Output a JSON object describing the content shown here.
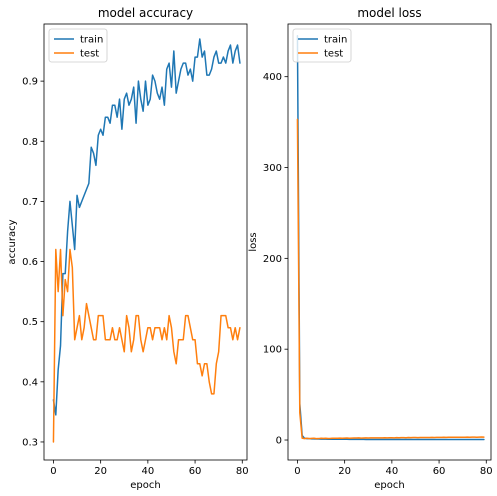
{
  "chart_data": [
    {
      "type": "line",
      "title": "model accuracy",
      "xlabel": "epoch",
      "ylabel": "accuracy",
      "xlim": [
        -4,
        82
      ],
      "ylim": [
        0.27,
        0.995
      ],
      "xticks": [
        0,
        20,
        40,
        60,
        80
      ],
      "yticks": [
        0.3,
        0.4,
        0.5,
        0.6,
        0.7,
        0.8,
        0.9
      ],
      "ytick_decimals": 1,
      "legend": "upper left",
      "grid": false,
      "series": [
        {
          "name": "train",
          "color": "#1f77b4",
          "x": [
            0,
            1,
            2,
            3,
            4,
            5,
            6,
            7,
            8,
            9,
            10,
            11,
            12,
            13,
            14,
            15,
            16,
            17,
            18,
            19,
            20,
            21,
            22,
            23,
            24,
            25,
            26,
            27,
            28,
            29,
            30,
            31,
            32,
            33,
            34,
            35,
            36,
            37,
            38,
            39,
            40,
            41,
            42,
            43,
            44,
            45,
            46,
            47,
            48,
            49,
            50,
            51,
            52,
            53,
            54,
            55,
            56,
            57,
            58,
            59,
            60,
            61,
            62,
            63,
            64,
            65,
            66,
            67,
            68,
            69,
            70,
            71,
            72,
            73,
            74,
            75,
            76,
            77,
            78,
            79
          ],
          "y": [
            0.37,
            0.345,
            0.42,
            0.46,
            0.58,
            0.58,
            0.65,
            0.7,
            0.66,
            0.62,
            0.71,
            0.69,
            0.7,
            0.71,
            0.72,
            0.73,
            0.79,
            0.78,
            0.76,
            0.81,
            0.82,
            0.81,
            0.84,
            0.84,
            0.83,
            0.86,
            0.86,
            0.84,
            0.87,
            0.82,
            0.87,
            0.88,
            0.86,
            0.87,
            0.89,
            0.83,
            0.9,
            0.87,
            0.85,
            0.9,
            0.86,
            0.87,
            0.91,
            0.9,
            0.88,
            0.87,
            0.89,
            0.86,
            0.92,
            0.93,
            0.89,
            0.95,
            0.88,
            0.9,
            0.92,
            0.93,
            0.93,
            0.91,
            0.92,
            0.9,
            0.94,
            0.94,
            0.97,
            0.94,
            0.95,
            0.91,
            0.91,
            0.92,
            0.94,
            0.95,
            0.93,
            0.93,
            0.94,
            0.93,
            0.95,
            0.96,
            0.93,
            0.95,
            0.96,
            0.93
          ]
        },
        {
          "name": "test",
          "color": "#ff7f0e",
          "x": [
            0,
            1,
            2,
            3,
            4,
            5,
            6,
            7,
            8,
            9,
            10,
            11,
            12,
            13,
            14,
            15,
            16,
            17,
            18,
            19,
            20,
            21,
            22,
            23,
            24,
            25,
            26,
            27,
            28,
            29,
            30,
            31,
            32,
            33,
            34,
            35,
            36,
            37,
            38,
            39,
            40,
            41,
            42,
            43,
            44,
            45,
            46,
            47,
            48,
            49,
            50,
            51,
            52,
            53,
            54,
            55,
            56,
            57,
            58,
            59,
            60,
            61,
            62,
            63,
            64,
            65,
            66,
            67,
            68,
            69,
            70,
            71,
            72,
            73,
            74,
            75,
            76,
            77,
            78,
            79
          ],
          "y": [
            0.3,
            0.62,
            0.55,
            0.62,
            0.51,
            0.57,
            0.55,
            0.62,
            0.59,
            0.47,
            0.49,
            0.51,
            0.47,
            0.49,
            0.53,
            0.51,
            0.49,
            0.47,
            0.47,
            0.51,
            0.51,
            0.51,
            0.47,
            0.47,
            0.47,
            0.49,
            0.47,
            0.47,
            0.49,
            0.47,
            0.45,
            0.51,
            0.49,
            0.45,
            0.47,
            0.51,
            0.51,
            0.47,
            0.45,
            0.47,
            0.49,
            0.49,
            0.47,
            0.49,
            0.49,
            0.49,
            0.47,
            0.49,
            0.47,
            0.51,
            0.49,
            0.45,
            0.43,
            0.47,
            0.47,
            0.47,
            0.51,
            0.51,
            0.49,
            0.47,
            0.47,
            0.43,
            0.43,
            0.41,
            0.43,
            0.43,
            0.4,
            0.38,
            0.38,
            0.43,
            0.45,
            0.51,
            0.51,
            0.51,
            0.49,
            0.49,
            0.47,
            0.49,
            0.47,
            0.49
          ]
        }
      ]
    },
    {
      "type": "line",
      "title": "model loss",
      "xlabel": "epoch",
      "ylabel": "loss",
      "xlim": [
        -4,
        82
      ],
      "ylim": [
        -22,
        458
      ],
      "xticks": [
        0,
        20,
        40,
        60,
        80
      ],
      "yticks": [
        0,
        100,
        200,
        300,
        400
      ],
      "ytick_decimals": 0,
      "legend": "upper left",
      "grid": false,
      "series": [
        {
          "name": "train",
          "color": "#1f77b4",
          "x": [
            0,
            1,
            2,
            3,
            4,
            5,
            6,
            7,
            8,
            9,
            10,
            11,
            12,
            13,
            14,
            15,
            16,
            17,
            18,
            19,
            20,
            21,
            22,
            23,
            24,
            25,
            26,
            27,
            28,
            29,
            30,
            31,
            32,
            33,
            34,
            35,
            36,
            37,
            38,
            39,
            40,
            41,
            42,
            43,
            44,
            45,
            46,
            47,
            48,
            49,
            50,
            51,
            52,
            53,
            54,
            55,
            56,
            57,
            58,
            59,
            60,
            61,
            62,
            63,
            64,
            65,
            66,
            67,
            68,
            69,
            70,
            71,
            72,
            73,
            74,
            75,
            76,
            77,
            78,
            79
          ],
          "y": [
            445,
            40,
            5,
            2,
            1.5,
            1.5,
            1.2,
            1.2,
            1.1,
            1.1,
            1,
            1,
            1,
            0.9,
            0.9,
            0.9,
            0.9,
            0.8,
            0.8,
            0.8,
            0.8,
            0.8,
            0.7,
            0.7,
            0.7,
            0.7,
            0.7,
            0.7,
            0.7,
            0.6,
            0.6,
            0.6,
            0.6,
            0.6,
            0.6,
            0.6,
            0.6,
            0.5,
            0.5,
            0.5,
            0.5,
            0.5,
            0.5,
            0.5,
            0.5,
            0.5,
            0.5,
            0.5,
            0.5,
            0.5,
            0.5,
            0.5,
            0.5,
            0.5,
            0.5,
            0.5,
            0.5,
            0.5,
            0.5,
            0.5,
            0.5,
            0.5,
            0.5,
            0.5,
            0.5,
            0.5,
            0.5,
            0.5,
            0.5,
            0.5,
            0.5,
            0.5,
            0.5,
            0.5,
            0.5,
            0.5,
            0.5,
            0.5,
            0.5,
            0.5
          ]
        },
        {
          "name": "test",
          "color": "#ff7f0e",
          "x": [
            0,
            1,
            2,
            3,
            4,
            5,
            6,
            7,
            8,
            9,
            10,
            11,
            12,
            13,
            14,
            15,
            16,
            17,
            18,
            19,
            20,
            21,
            22,
            23,
            24,
            25,
            26,
            27,
            28,
            29,
            30,
            31,
            32,
            33,
            34,
            35,
            36,
            37,
            38,
            39,
            40,
            41,
            42,
            43,
            44,
            45,
            46,
            47,
            48,
            49,
            50,
            51,
            52,
            53,
            54,
            55,
            56,
            57,
            58,
            59,
            60,
            61,
            62,
            63,
            64,
            65,
            66,
            67,
            68,
            69,
            70,
            71,
            72,
            73,
            74,
            75,
            76,
            77,
            78,
            79
          ],
          "y": [
            353,
            30,
            2,
            1.5,
            2,
            1.5,
            1.8,
            2,
            1.5,
            1.6,
            2,
            1.8,
            2,
            1.7,
            1.8,
            2,
            1.9,
            2,
            2.1,
            2,
            2.1,
            2.2,
            2,
            2.1,
            2.2,
            2.2,
            2.3,
            2.1,
            2.2,
            2.3,
            2.2,
            2.3,
            2.4,
            2.3,
            2.3,
            2.4,
            2.4,
            2.5,
            2.4,
            2.5,
            2.5,
            2.4,
            2.6,
            2.5,
            2.6,
            2.6,
            2.5,
            2.7,
            2.6,
            2.7,
            2.7,
            2.6,
            2.8,
            2.7,
            2.8,
            2.8,
            2.8,
            2.9,
            2.8,
            2.9,
            2.9,
            2.9,
            3,
            2.9,
            3,
            3,
            3,
            3.1,
            3,
            3.1,
            3.1,
            3,
            3.2,
            3.1,
            3.2,
            3.2,
            3.1,
            3.2,
            3.3,
            3.2
          ]
        }
      ]
    }
  ]
}
